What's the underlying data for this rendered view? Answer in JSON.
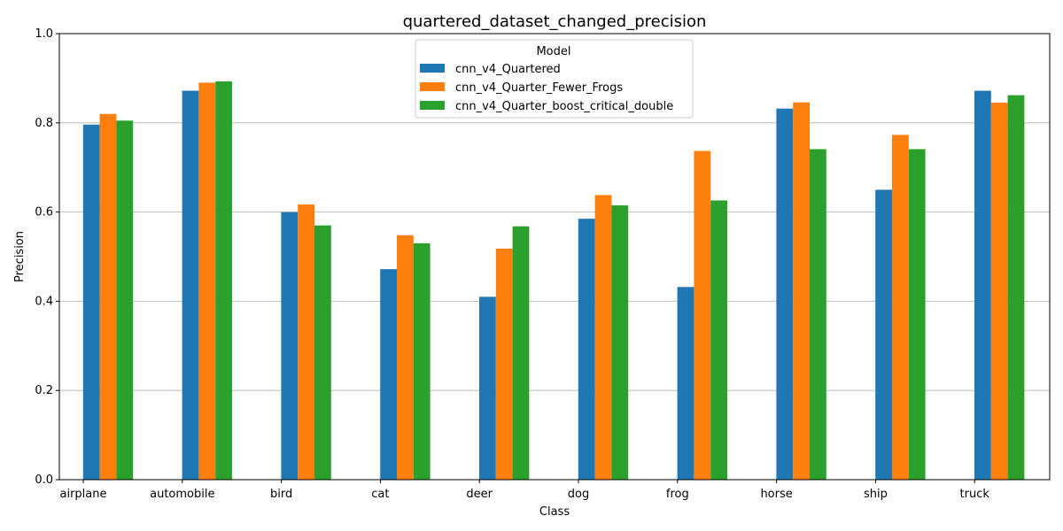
{
  "chart_data": {
    "type": "bar",
    "title": "quartered_dataset_changed_precision",
    "xlabel": "Class",
    "ylabel": "Precision",
    "ylim": [
      0,
      1.0
    ],
    "yticks": [
      "0.0",
      "0.2",
      "0.4",
      "0.6",
      "0.8",
      "1.0"
    ],
    "grid": "horizontal",
    "legend": {
      "title": "Model",
      "placement": "top-center"
    },
    "categories": [
      "airplane",
      "automobile",
      "bird",
      "cat",
      "deer",
      "dog",
      "frog",
      "horse",
      "ship",
      "truck"
    ],
    "series": [
      {
        "name": "cnn_v4_Quartered",
        "color": "#1f77b4",
        "values": [
          0.796,
          0.872,
          0.6,
          0.472,
          0.41,
          0.585,
          0.432,
          0.832,
          0.65,
          0.872
        ]
      },
      {
        "name": "cnn_v4_Quarter_Fewer_Frogs",
        "color": "#ff7f0e",
        "values": [
          0.82,
          0.89,
          0.617,
          0.548,
          0.518,
          0.638,
          0.737,
          0.846,
          0.773,
          0.845
        ]
      },
      {
        "name": "cnn_v4_Quarter_boost_critical_double",
        "color": "#2ca02c",
        "values": [
          0.805,
          0.893,
          0.57,
          0.53,
          0.568,
          0.615,
          0.626,
          0.741,
          0.741,
          0.862
        ]
      }
    ]
  }
}
